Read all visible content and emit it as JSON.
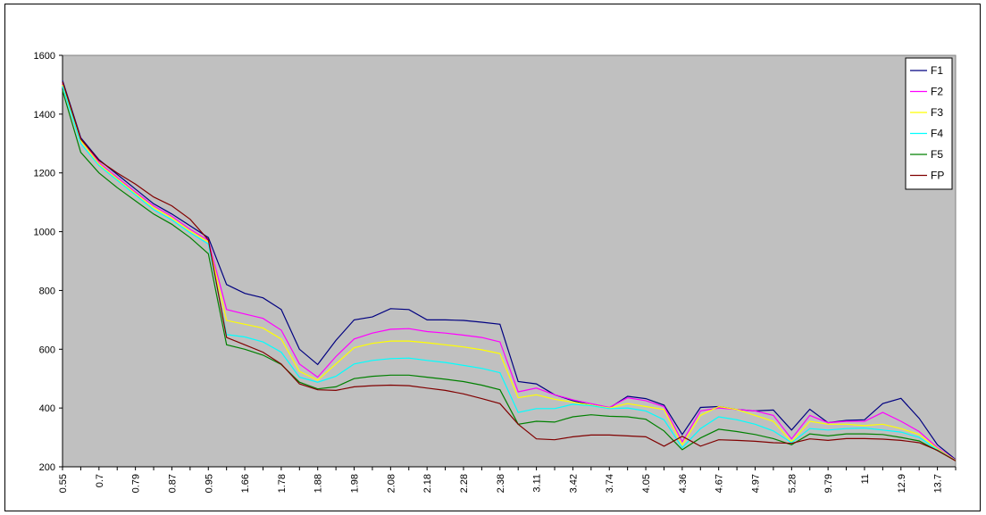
{
  "chart_data": {
    "type": "line",
    "title": "",
    "xlabel": "",
    "ylabel": "",
    "ylim": [
      200,
      1600
    ],
    "yticks": [
      200,
      400,
      600,
      800,
      1000,
      1200,
      1400,
      1600
    ],
    "grid": false,
    "legend_position": "top-right",
    "plot_background": "#c0c0c0",
    "x": [
      "0.55",
      "0.6",
      "0.7",
      "0.75",
      "0.79",
      "0.83",
      "0.87",
      "0.91",
      "0.95",
      "1.6",
      "1.66",
      "1.72",
      "1.78",
      "1.83",
      "1.88",
      "1.93",
      "1.98",
      "2.03",
      "2.08",
      "2.13",
      "2.18",
      "2.23",
      "2.28",
      "2.33",
      "2.38",
      "2.9",
      "3.11",
      "3.3",
      "3.42",
      "3.6",
      "3.74",
      "3.9",
      "4.05",
      "4.2",
      "4.36",
      "4.5",
      "4.67",
      "4.8",
      "4.97",
      "5.1",
      "5.28",
      "9.5",
      "9.79",
      "10.5",
      "11",
      "12",
      "12.9",
      "13.3",
      "13.7",
      "14"
    ],
    "x_tick_labels": [
      "0.55",
      "0.7",
      "0.79",
      "0.87",
      "0.95",
      "1.66",
      "1.78",
      "1.88",
      "1.98",
      "2.08",
      "2.18",
      "2.28",
      "2.38",
      "3.11",
      "3.42",
      "3.74",
      "4.05",
      "4.36",
      "4.67",
      "4.97",
      "5.28",
      "9.79",
      "11",
      "12.9",
      "13.7"
    ],
    "series": [
      {
        "name": "F1",
        "color": "#000080",
        "values": [
          1515,
          1320,
          1245,
          1195,
          1145,
          1095,
          1060,
          1020,
          980,
          820,
          790,
          775,
          735,
          600,
          548,
          630,
          700,
          710,
          738,
          735,
          700,
          700,
          698,
          692,
          685,
          490,
          482,
          445,
          425,
          410,
          400,
          440,
          432,
          410,
          310,
          402,
          405,
          395,
          390,
          393,
          325,
          396,
          350,
          358,
          360,
          415,
          433,
          365,
          275,
          225
        ]
      },
      {
        "name": "F2",
        "color": "#ff00ff",
        "values": [
          1505,
          1315,
          1235,
          1185,
          1135,
          1088,
          1052,
          1008,
          970,
          735,
          720,
          705,
          665,
          550,
          505,
          575,
          635,
          655,
          668,
          670,
          660,
          655,
          648,
          640,
          625,
          455,
          468,
          445,
          428,
          415,
          402,
          435,
          425,
          405,
          285,
          390,
          400,
          395,
          390,
          375,
          295,
          375,
          350,
          355,
          355,
          385,
          355,
          320,
          265,
          223
        ]
      },
      {
        "name": "F3",
        "color": "#ffff00",
        "values": [
          1500,
          1310,
          1230,
          1180,
          1130,
          1082,
          1046,
          1002,
          965,
          698,
          685,
          672,
          635,
          525,
          495,
          550,
          605,
          620,
          628,
          628,
          622,
          615,
          608,
          598,
          585,
          435,
          445,
          430,
          420,
          410,
          400,
          415,
          405,
          395,
          275,
          375,
          405,
          395,
          375,
          355,
          285,
          355,
          345,
          345,
          340,
          345,
          330,
          310,
          262,
          222
        ]
      },
      {
        "name": "F4",
        "color": "#00ffff",
        "values": [
          1495,
          1300,
          1225,
          1175,
          1125,
          1075,
          1040,
          996,
          958,
          650,
          642,
          625,
          590,
          505,
          488,
          508,
          550,
          562,
          568,
          570,
          562,
          555,
          545,
          535,
          520,
          385,
          398,
          398,
          413,
          408,
          398,
          400,
          390,
          360,
          265,
          330,
          370,
          360,
          345,
          322,
          282,
          330,
          325,
          330,
          332,
          325,
          318,
          300,
          258,
          221
        ]
      },
      {
        "name": "F5",
        "color": "#008000",
        "values": [
          1480,
          1270,
          1200,
          1150,
          1105,
          1060,
          1025,
          980,
          925,
          615,
          600,
          580,
          548,
          488,
          465,
          472,
          500,
          508,
          512,
          512,
          505,
          498,
          490,
          478,
          462,
          345,
          355,
          352,
          370,
          377,
          372,
          370,
          362,
          322,
          258,
          298,
          328,
          320,
          310,
          296,
          275,
          312,
          305,
          312,
          312,
          310,
          300,
          288,
          255,
          221
        ]
      },
      {
        "name": "FP",
        "color": "#800000",
        "values": [
          1510,
          1315,
          1242,
          1200,
          1162,
          1118,
          1088,
          1042,
          972,
          640,
          615,
          590,
          550,
          482,
          462,
          460,
          472,
          476,
          478,
          476,
          468,
          460,
          448,
          432,
          415,
          345,
          295,
          292,
          302,
          308,
          308,
          305,
          302,
          270,
          304,
          270,
          292,
          290,
          287,
          282,
          280,
          295,
          290,
          296,
          296,
          294,
          290,
          282,
          256,
          220
        ]
      }
    ]
  }
}
